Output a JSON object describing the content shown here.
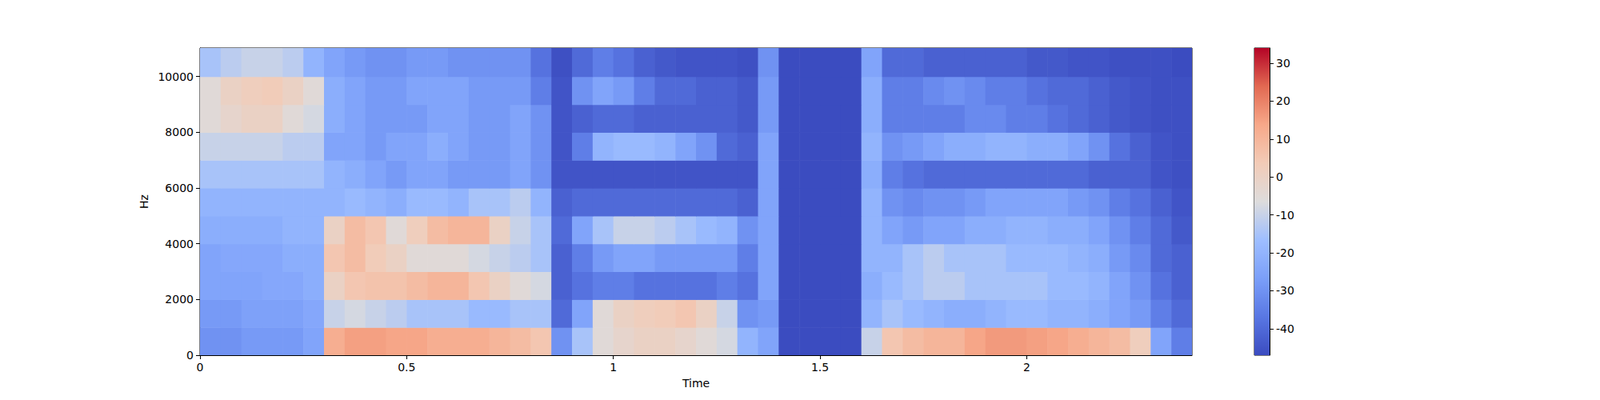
{
  "chart_data": {
    "type": "heatmap",
    "xlabel": "Time",
    "ylabel": "Hz",
    "xlim": [
      0,
      2.4
    ],
    "xticks": [
      0,
      0.5,
      1,
      1.5,
      2
    ],
    "ylim": [
      0,
      11025
    ],
    "yticks": [
      0,
      2000,
      4000,
      6000,
      8000,
      10000
    ],
    "grid": false,
    "time_bins": [
      0,
      0.05,
      0.1,
      0.15,
      0.2,
      0.25,
      0.3,
      0.35,
      0.4,
      0.45,
      0.5,
      0.55,
      0.6,
      0.65,
      0.7,
      0.75,
      0.8,
      0.85,
      0.9,
      0.95,
      1,
      1.05,
      1.1,
      1.15,
      1.2,
      1.25,
      1.3,
      1.35,
      1.4,
      1.45,
      1.5,
      1.55,
      1.6,
      1.65,
      1.7,
      1.75,
      1.8,
      1.85,
      1.9,
      1.95,
      2,
      2.05,
      2.1,
      2.15,
      2.2,
      2.25,
      2.3,
      2.35,
      2.4
    ],
    "freq_bins": [
      0,
      1000,
      2000,
      3000,
      4000,
      5000,
      6000,
      7000,
      8000,
      9000,
      10000,
      11025
    ],
    "cells": [
      [
        -30,
        -30,
        -28,
        -28,
        -28,
        -25,
        12,
        15,
        15,
        14,
        14,
        12,
        12,
        12,
        10,
        8,
        5,
        -30,
        -15,
        -5,
        -2,
        0,
        0,
        -2,
        -5,
        -8,
        -20,
        -25,
        -47,
        -47,
        -47,
        -47,
        -10,
        5,
        8,
        10,
        10,
        14,
        16,
        16,
        15,
        14,
        12,
        10,
        8,
        2,
        -25,
        -35
      ],
      [
        -28,
        -28,
        -26,
        -26,
        -26,
        -24,
        -10,
        -8,
        -10,
        -12,
        -15,
        -15,
        -15,
        -18,
        -18,
        -15,
        -15,
        -40,
        -25,
        -5,
        0,
        2,
        3,
        5,
        0,
        -10,
        -30,
        -28,
        -47,
        -47,
        -47,
        -47,
        -20,
        -15,
        -18,
        -20,
        -22,
        -22,
        -20,
        -18,
        -18,
        -20,
        -20,
        -22,
        -25,
        -28,
        -35,
        -40
      ],
      [
        -25,
        -25,
        -25,
        -24,
        -24,
        -22,
        0,
        5,
        6,
        6,
        8,
        10,
        10,
        5,
        0,
        -5,
        -8,
        -42,
        -38,
        -35,
        -35,
        -38,
        -38,
        -38,
        -38,
        -35,
        -38,
        -25,
        -47,
        -47,
        -47,
        -47,
        -22,
        -18,
        -15,
        -12,
        -12,
        -15,
        -15,
        -15,
        -15,
        -18,
        -18,
        -20,
        -25,
        -30,
        -38,
        -42
      ],
      [
        -25,
        -24,
        -24,
        -24,
        -22,
        -22,
        5,
        8,
        3,
        0,
        -5,
        -5,
        -5,
        -8,
        -10,
        -12,
        -15,
        -42,
        -35,
        -28,
        -25,
        -25,
        -28,
        -28,
        -28,
        -28,
        -35,
        -25,
        -47,
        -47,
        -47,
        -47,
        -20,
        -20,
        -15,
        -12,
        -15,
        -15,
        -15,
        -18,
        -18,
        -18,
        -20,
        -22,
        -28,
        -32,
        -40,
        -42
      ],
      [
        -22,
        -22,
        -22,
        -22,
        -20,
        -20,
        0,
        8,
        5,
        -5,
        2,
        8,
        10,
        10,
        0,
        -10,
        -15,
        -40,
        -25,
        -15,
        -10,
        -10,
        -12,
        -15,
        -18,
        -20,
        -30,
        -25,
        -47,
        -47,
        -47,
        -47,
        -20,
        -25,
        -28,
        -25,
        -25,
        -22,
        -22,
        -20,
        -20,
        -22,
        -22,
        -25,
        -30,
        -35,
        -40,
        -44
      ],
      [
        -20,
        -20,
        -20,
        -20,
        -20,
        -20,
        -20,
        -18,
        -20,
        -22,
        -18,
        -18,
        -20,
        -15,
        -15,
        -12,
        -20,
        -42,
        -40,
        -40,
        -40,
        -40,
        -40,
        -40,
        -40,
        -40,
        -42,
        -25,
        -47,
        -47,
        -47,
        -47,
        -20,
        -30,
        -32,
        -30,
        -30,
        -28,
        -25,
        -25,
        -25,
        -25,
        -28,
        -30,
        -35,
        -38,
        -42,
        -45
      ],
      [
        -15,
        -15,
        -15,
        -15,
        -15,
        -15,
        -20,
        -22,
        -25,
        -28,
        -25,
        -25,
        -28,
        -28,
        -28,
        -25,
        -30,
        -45,
        -45,
        -45,
        -45,
        -45,
        -45,
        -45,
        -45,
        -45,
        -45,
        -25,
        -47,
        -47,
        -47,
        -47,
        -22,
        -35,
        -38,
        -40,
        -40,
        -40,
        -40,
        -40,
        -40,
        -40,
        -40,
        -42,
        -42,
        -42,
        -45,
        -46
      ],
      [
        -10,
        -10,
        -10,
        -10,
        -12,
        -12,
        -25,
        -25,
        -28,
        -25,
        -25,
        -22,
        -25,
        -28,
        -28,
        -25,
        -30,
        -45,
        -35,
        -20,
        -18,
        -18,
        -20,
        -25,
        -30,
        -40,
        -42,
        -25,
        -47,
        -47,
        -47,
        -47,
        -20,
        -30,
        -28,
        -25,
        -22,
        -22,
        -20,
        -20,
        -22,
        -22,
        -25,
        -30,
        -38,
        -42,
        -45,
        -46
      ],
      [
        -5,
        -2,
        0,
        0,
        -5,
        -8,
        -22,
        -25,
        -28,
        -28,
        -28,
        -25,
        -25,
        -28,
        -28,
        -25,
        -30,
        -45,
        -42,
        -40,
        -40,
        -42,
        -42,
        -42,
        -42,
        -42,
        -44,
        -28,
        -47,
        -47,
        -47,
        -47,
        -22,
        -35,
        -35,
        -35,
        -35,
        -32,
        -32,
        -35,
        -35,
        -38,
        -40,
        -42,
        -44,
        -45,
        -46,
        -46
      ],
      [
        -5,
        0,
        2,
        3,
        0,
        -5,
        -22,
        -25,
        -28,
        -28,
        -25,
        -25,
        -25,
        -28,
        -28,
        -28,
        -35,
        -45,
        -30,
        -25,
        -28,
        -35,
        -40,
        -40,
        -42,
        -42,
        -44,
        -28,
        -47,
        -47,
        -47,
        -47,
        -22,
        -35,
        -35,
        -32,
        -30,
        -32,
        -35,
        -35,
        -38,
        -40,
        -40,
        -42,
        -44,
        -45,
        -46,
        -46
      ],
      [
        -15,
        -12,
        -10,
        -10,
        -12,
        -20,
        -25,
        -28,
        -30,
        -30,
        -28,
        -28,
        -30,
        -30,
        -30,
        -30,
        -38,
        -46,
        -40,
        -35,
        -38,
        -42,
        -44,
        -45,
        -45,
        -45,
        -46,
        -30,
        -47,
        -47,
        -47,
        -47,
        -25,
        -40,
        -40,
        -42,
        -42,
        -42,
        -42,
        -42,
        -44,
        -44,
        -45,
        -45,
        -46,
        -46,
        -46,
        -47
      ]
    ],
    "colorbar": {
      "range": [
        -47,
        34
      ],
      "ticks": [
        -40,
        -30,
        -20,
        -10,
        0,
        10,
        20,
        30
      ]
    }
  }
}
